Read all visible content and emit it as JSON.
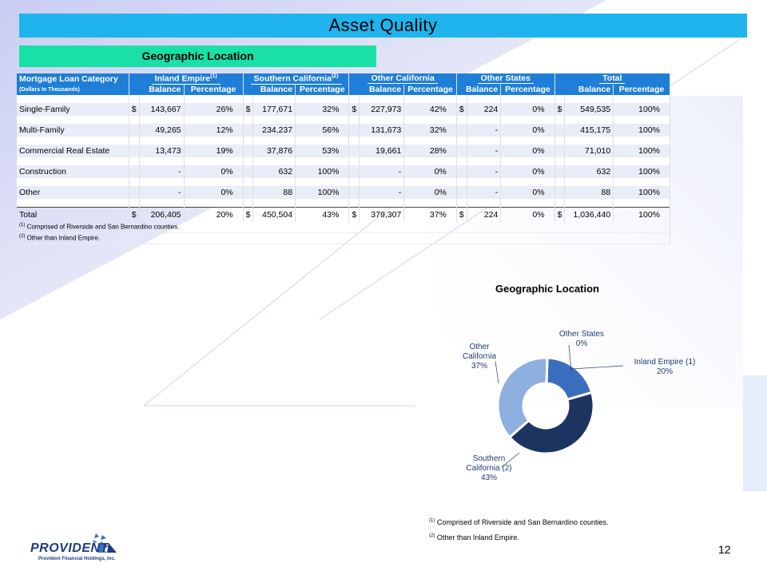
{
  "page": {
    "title": "Asset Quality",
    "subtitle": "Geographic Location",
    "page_number": "12"
  },
  "table": {
    "header_category": "Mortgage Loan Category",
    "header_units": "(Dollars In Thousands)",
    "groups": [
      {
        "label": "Inland Empire",
        "sup": "(1)"
      },
      {
        "label": "Southern California",
        "sup": "(2)"
      },
      {
        "label": "Other California",
        "sup": ""
      },
      {
        "label": "Other States",
        "sup": ""
      },
      {
        "label": "Total",
        "sup": ""
      }
    ],
    "col_balance": "Balance",
    "col_percentage": "Percentage",
    "rows": [
      {
        "name": "Single-Family",
        "cells": [
          [
            "$",
            "143,667",
            "26%"
          ],
          [
            "$",
            "177,671",
            "32%"
          ],
          [
            "$",
            "227,973",
            "42%"
          ],
          [
            "$",
            "224",
            "0%"
          ],
          [
            "$",
            "549,535",
            "100%"
          ]
        ]
      },
      {
        "name": "Multi-Family",
        "cells": [
          [
            "",
            "49,265",
            "12%"
          ],
          [
            "",
            "234,237",
            "56%"
          ],
          [
            "",
            "131,673",
            "32%"
          ],
          [
            "",
            "-",
            "0%"
          ],
          [
            "",
            "415,175",
            "100%"
          ]
        ]
      },
      {
        "name": "Commercial Real Estate",
        "cells": [
          [
            "",
            "13,473",
            "19%"
          ],
          [
            "",
            "37,876",
            "53%"
          ],
          [
            "",
            "19,661",
            "28%"
          ],
          [
            "",
            "-",
            "0%"
          ],
          [
            "",
            "71,010",
            "100%"
          ]
        ]
      },
      {
        "name": "Construction",
        "cells": [
          [
            "",
            "-",
            "0%"
          ],
          [
            "",
            "632",
            "100%"
          ],
          [
            "",
            "-",
            "0%"
          ],
          [
            "",
            "-",
            "0%"
          ],
          [
            "",
            "632",
            "100%"
          ]
        ]
      },
      {
        "name": "Other",
        "cells": [
          [
            "",
            "-",
            "0%"
          ],
          [
            "",
            "88",
            "100%"
          ],
          [
            "",
            "-",
            "0%"
          ],
          [
            "",
            "-",
            "0%"
          ],
          [
            "",
            "88",
            "100%"
          ]
        ]
      }
    ],
    "total": {
      "name": "Total",
      "cells": [
        [
          "$",
          "206,405",
          "20%"
        ],
        [
          "$",
          "450,504",
          "43%"
        ],
        [
          "$",
          "379,307",
          "37%"
        ],
        [
          "$",
          "224",
          "0%"
        ],
        [
          "$",
          "1,036,440",
          "100%"
        ]
      ]
    },
    "footnotes": [
      {
        "mark": "(1)",
        "text": "Comprised of Riverside and San Bernardino counties."
      },
      {
        "mark": "(2)",
        "text": "Other than Inland Empire."
      }
    ]
  },
  "chart_data": {
    "type": "pie",
    "title": "Geographic Location",
    "categories": [
      "Inland Empire (1)",
      "Southern California (2)",
      "Other California",
      "Other States"
    ],
    "values": [
      20,
      43,
      37,
      0
    ],
    "value_labels": [
      "20%",
      "43%",
      "37%",
      "0%"
    ],
    "colors": [
      "#3a6fc0",
      "#1b3560",
      "#8db0e0",
      "#4a7dc8"
    ],
    "hole": true
  },
  "chart_labels": {
    "inland_line1": "Inland Empire (1)",
    "inland_pct": "20%",
    "southern_line1": "Southern",
    "southern_line2": "California (2)",
    "southern_pct": "43%",
    "othercal_line1": "Other",
    "othercal_line2": "California",
    "othercal_pct": "37%",
    "otherstates_line1": "Other States",
    "otherstates_pct": "0%"
  },
  "bottom_footnotes": [
    {
      "mark": "(1)",
      "text": "Comprised of Riverside and San Bernardino counties."
    },
    {
      "mark": "(2)",
      "text": "Other than Inland Empire."
    }
  ],
  "logo": {
    "name": "PROVIDENT",
    "sub": "Provident Financial Holdings, Inc."
  }
}
